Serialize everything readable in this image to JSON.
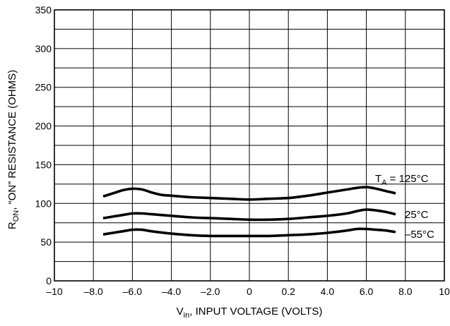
{
  "chart_data": {
    "type": "line",
    "xlabel_main": "V",
    "xlabel_sub": "in",
    "xlabel_rest": ", INPUT VOLTAGE (VOLTS)",
    "ylabel_main": "R",
    "ylabel_sub": "ON",
    "ylabel_rest": ", “ON” RESISTANCE (OHMS)",
    "x_tick_labels": [
      "–10",
      "–8.0",
      "–6.0",
      "–4.0",
      "–2.0",
      "0",
      "0.2",
      "4.0",
      "6.0",
      "8.0",
      "10"
    ],
    "y_tick_labels": [
      "0",
      "50",
      "100",
      "150",
      "200",
      "250",
      "300",
      "350"
    ],
    "xlim": [
      -10,
      10
    ],
    "ylim": [
      0,
      350
    ],
    "grid": true,
    "series": [
      {
        "name": "T_A = 125°C",
        "label_main": "T",
        "label_sub": "A",
        "label_rest": " = 125°C",
        "x": [
          -7.5,
          -7,
          -6.5,
          -6,
          -5.5,
          -5,
          -4.5,
          -4,
          -3,
          -2,
          -1,
          0,
          1,
          2,
          3,
          4,
          5,
          5.5,
          6,
          6.5,
          7,
          7.5
        ],
        "y": [
          109,
          113,
          117,
          119,
          118,
          114,
          111,
          110,
          108,
          107,
          106,
          105,
          106,
          107,
          110,
          114,
          118,
          120,
          121,
          119,
          116,
          113
        ]
      },
      {
        "name": "25°C",
        "label_main": "25°C",
        "x": [
          -7.5,
          -7,
          -6.5,
          -6,
          -5.5,
          -5,
          -4,
          -3,
          -2,
          -1,
          0,
          1,
          2,
          3,
          4,
          5,
          5.5,
          6,
          6.5,
          7,
          7.5
        ],
        "y": [
          81,
          83,
          85,
          87,
          87,
          86,
          84,
          82,
          81,
          80,
          79,
          79,
          80,
          82,
          84,
          87,
          90,
          92,
          91,
          89,
          86
        ]
      },
      {
        "name": "–55°C",
        "label_main": "–55°C",
        "x": [
          -7.5,
          -7,
          -6.5,
          -6,
          -5.5,
          -5,
          -4,
          -3,
          -2,
          -1,
          0,
          1,
          2,
          3,
          4,
          5,
          5.5,
          6,
          6.5,
          7,
          7.5
        ],
        "y": [
          60,
          62,
          64,
          66,
          66,
          64,
          61,
          59,
          58,
          58,
          58,
          58,
          59,
          60,
          62,
          65,
          67,
          67,
          66,
          65,
          63
        ]
      }
    ]
  }
}
